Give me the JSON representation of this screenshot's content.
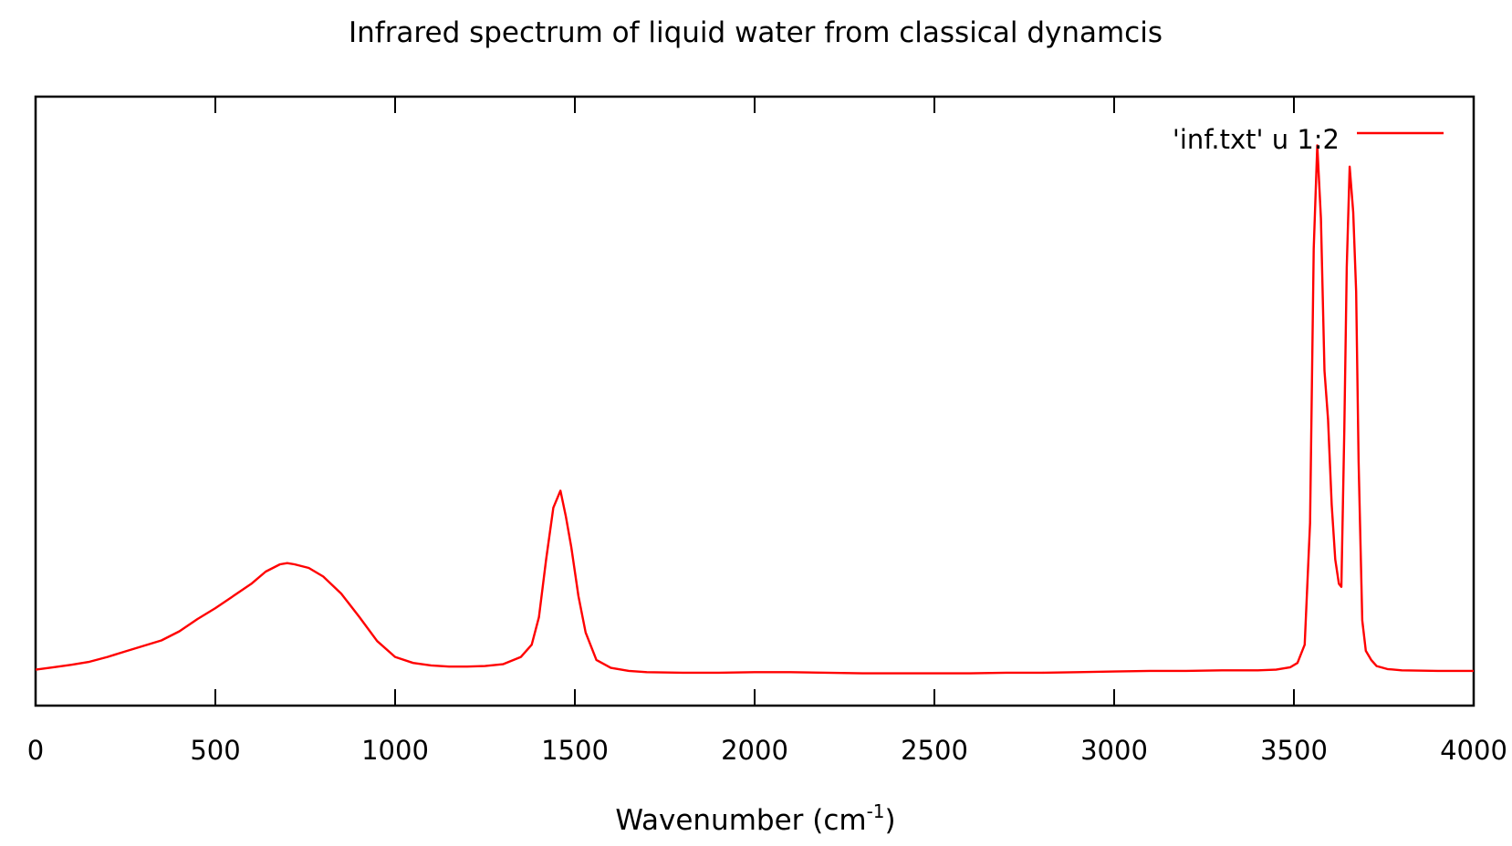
{
  "chart_data": {
    "type": "line",
    "title": "Infrared spectrum of liquid water from classical dynamcis",
    "xlabel": {
      "prefix": "Wavenumber (cm",
      "sup": "-1",
      "suffix": ")"
    },
    "ylabel": "",
    "xlim": [
      0,
      4000
    ],
    "ylim": [
      0,
      1
    ],
    "xticks": [
      {
        "value": 0,
        "label": "0"
      },
      {
        "value": 500,
        "label": "500"
      },
      {
        "value": 1000,
        "label": "1000"
      },
      {
        "value": 1500,
        "label": "1500"
      },
      {
        "value": 2000,
        "label": "2000"
      },
      {
        "value": 2500,
        "label": "2500"
      },
      {
        "value": 3000,
        "label": "3000"
      },
      {
        "value": 3500,
        "label": "3500"
      },
      {
        "value": 4000,
        "label": "4000"
      }
    ],
    "ytick_labels_visible": false,
    "grid": false,
    "legend": {
      "position": "top-right",
      "entries": [
        "'inf.txt' u 1:2"
      ]
    },
    "series": [
      {
        "name": "'inf.txt' u 1:2",
        "color": "#ff0000",
        "points": [
          [
            0,
            0.059
          ],
          [
            50,
            0.063
          ],
          [
            100,
            0.067
          ],
          [
            150,
            0.072
          ],
          [
            200,
            0.08
          ],
          [
            250,
            0.089
          ],
          [
            300,
            0.098
          ],
          [
            350,
            0.107
          ],
          [
            400,
            0.122
          ],
          [
            450,
            0.142
          ],
          [
            500,
            0.16
          ],
          [
            550,
            0.18
          ],
          [
            600,
            0.2
          ],
          [
            640,
            0.22
          ],
          [
            680,
            0.232
          ],
          [
            700,
            0.234
          ],
          [
            720,
            0.232
          ],
          [
            760,
            0.226
          ],
          [
            800,
            0.212
          ],
          [
            850,
            0.184
          ],
          [
            900,
            0.146
          ],
          [
            950,
            0.106
          ],
          [
            1000,
            0.08
          ],
          [
            1050,
            0.07
          ],
          [
            1100,
            0.066
          ],
          [
            1150,
            0.064
          ],
          [
            1200,
            0.064
          ],
          [
            1250,
            0.065
          ],
          [
            1300,
            0.068
          ],
          [
            1350,
            0.08
          ],
          [
            1380,
            0.1
          ],
          [
            1400,
            0.145
          ],
          [
            1420,
            0.24
          ],
          [
            1440,
            0.325
          ],
          [
            1460,
            0.353
          ],
          [
            1475,
            0.31
          ],
          [
            1490,
            0.26
          ],
          [
            1510,
            0.18
          ],
          [
            1530,
            0.12
          ],
          [
            1560,
            0.075
          ],
          [
            1600,
            0.062
          ],
          [
            1650,
            0.057
          ],
          [
            1700,
            0.055
          ],
          [
            1800,
            0.054
          ],
          [
            1900,
            0.054
          ],
          [
            2000,
            0.055
          ],
          [
            2100,
            0.055
          ],
          [
            2200,
            0.054
          ],
          [
            2300,
            0.053
          ],
          [
            2400,
            0.053
          ],
          [
            2500,
            0.053
          ],
          [
            2600,
            0.053
          ],
          [
            2700,
            0.054
          ],
          [
            2800,
            0.054
          ],
          [
            2900,
            0.055
          ],
          [
            3000,
            0.056
          ],
          [
            3100,
            0.057
          ],
          [
            3200,
            0.057
          ],
          [
            3300,
            0.058
          ],
          [
            3400,
            0.058
          ],
          [
            3450,
            0.059
          ],
          [
            3490,
            0.063
          ],
          [
            3510,
            0.07
          ],
          [
            3530,
            0.1
          ],
          [
            3545,
            0.3
          ],
          [
            3555,
            0.75
          ],
          [
            3565,
            0.92
          ],
          [
            3575,
            0.8
          ],
          [
            3585,
            0.55
          ],
          [
            3595,
            0.47
          ],
          [
            3605,
            0.33
          ],
          [
            3615,
            0.24
          ],
          [
            3625,
            0.2
          ],
          [
            3632,
            0.195
          ],
          [
            3640,
            0.45
          ],
          [
            3647,
            0.72
          ],
          [
            3655,
            0.885
          ],
          [
            3665,
            0.81
          ],
          [
            3673,
            0.68
          ],
          [
            3680,
            0.4
          ],
          [
            3690,
            0.14
          ],
          [
            3700,
            0.09
          ],
          [
            3715,
            0.075
          ],
          [
            3730,
            0.065
          ],
          [
            3760,
            0.06
          ],
          [
            3800,
            0.058
          ],
          [
            3900,
            0.057
          ],
          [
            4000,
            0.057
          ]
        ]
      }
    ]
  }
}
